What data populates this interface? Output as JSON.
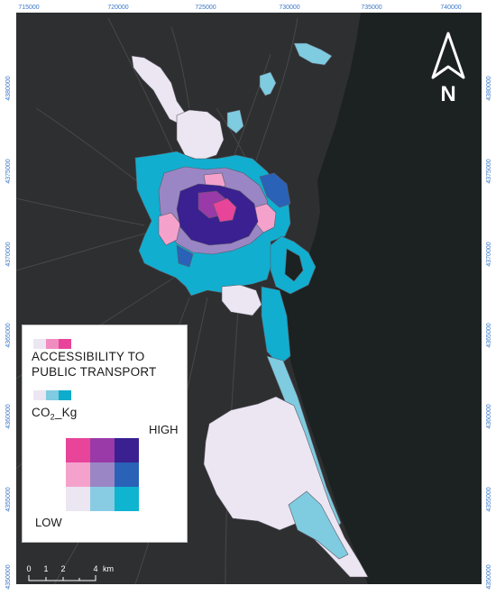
{
  "axes": {
    "x_ticks": [
      "715000",
      "720000",
      "725000",
      "730000",
      "735000",
      "740000"
    ],
    "y_ticks": [
      "4380000",
      "4375000",
      "4370000",
      "4365000",
      "4360000",
      "4355000",
      "4350000"
    ]
  },
  "legend": {
    "accessibility_title": "ACCESSIBILITY TO PUBLIC TRANSPORT",
    "co2_title_main": "CO",
    "co2_title_sub": "2",
    "co2_title_suffix": "_Kg",
    "high_label": "HIGH",
    "low_label": "LOW",
    "accessibility_colors": [
      "#ece6f2",
      "#f08cc0",
      "#e8449a"
    ],
    "co2_colors": [
      "#ece6f2",
      "#7fcbe0",
      "#0eaccc"
    ],
    "bivariate_grid": [
      [
        "#e8449a",
        "#9a3aa8",
        "#3a2090"
      ],
      [
        "#f4a2cc",
        "#9a86c4",
        "#2a62b8"
      ],
      [
        "#ece6f2",
        "#88cce4",
        "#0eb4d0"
      ]
    ]
  },
  "north_arrow": {
    "label": "N",
    "icon": "north-arrow-icon"
  },
  "scale_bar": {
    "labels": [
      "0",
      "1",
      "2",
      "4"
    ],
    "unit": "km"
  },
  "colors": {
    "land": "#2e2f30",
    "sea": "#1c2221",
    "roads": "#4a4b4c",
    "tick_text": "#3a78c8"
  }
}
